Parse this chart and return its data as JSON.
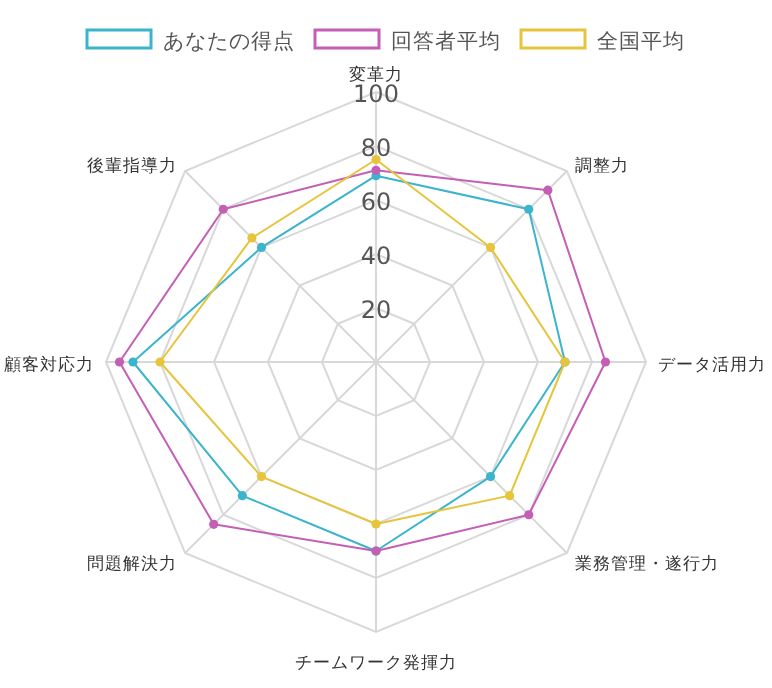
{
  "chart_data": {
    "type": "radar",
    "categories": [
      "変革力",
      "調整力",
      "データ活用力",
      "業務管理・遂行力",
      "チームワーク発揮力",
      "問題解決力",
      "顧客対応力",
      "後輩指導力"
    ],
    "series": [
      {
        "name": "あなたの得点",
        "color": "#3bb4cc",
        "values": [
          69,
          80,
          70,
          60,
          70,
          70,
          90,
          60
        ]
      },
      {
        "name": "回答者平均",
        "color": "#c45fb5",
        "values": [
          71,
          90,
          85,
          80,
          70,
          85,
          95,
          80
        ]
      },
      {
        "name": "全国平均",
        "color": "#e6c43c",
        "values": [
          75,
          60,
          70,
          70,
          60,
          60,
          80,
          65
        ]
      }
    ],
    "ylim": [
      0,
      100
    ],
    "yticks": [
      20,
      40,
      60,
      80,
      100
    ],
    "legend": "top",
    "marker": "circle",
    "grid": true
  }
}
